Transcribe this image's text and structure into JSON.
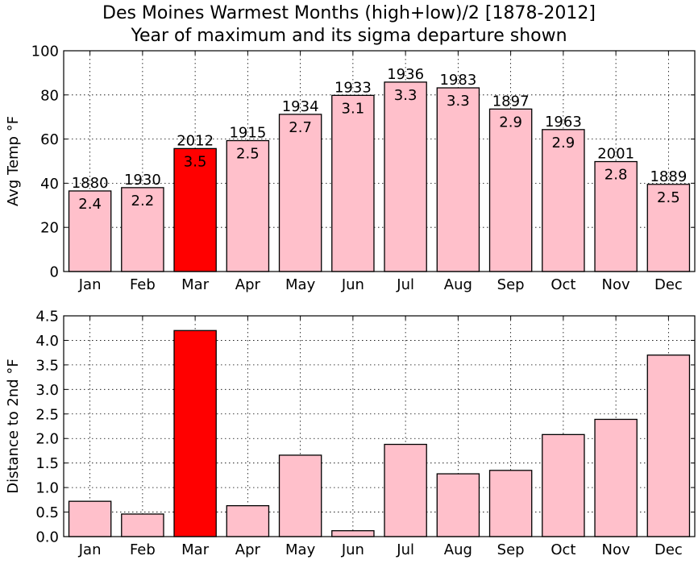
{
  "chart_data": [
    {
      "type": "bar",
      "title": "Des Moines Warmest Months (high+low)/2 [1878-2012]",
      "subtitle": "Year of maximum and its sigma departure shown",
      "ylabel": "Avg Temp °F",
      "xlabel": "",
      "ylim": [
        0,
        100
      ],
      "yticks": [
        "0",
        "20",
        "40",
        "60",
        "80",
        "100"
      ],
      "grid": true,
      "categories": [
        "Jan",
        "Feb",
        "Mar",
        "Apr",
        "May",
        "Jun",
        "Jul",
        "Aug",
        "Sep",
        "Oct",
        "Nov",
        "Dec"
      ],
      "values": [
        36.5,
        38,
        55.7,
        59.3,
        71.2,
        79.8,
        85.8,
        83.2,
        73.6,
        64.3,
        49.8,
        39.5
      ],
      "years": [
        "1880",
        "1930",
        "2012",
        "1915",
        "1934",
        "1933",
        "1936",
        "1983",
        "1897",
        "1963",
        "2001",
        "1889"
      ],
      "sigmas": [
        "2.4",
        "2.2",
        "3.5",
        "2.5",
        "2.7",
        "3.1",
        "3.3",
        "3.3",
        "2.9",
        "2.9",
        "2.8",
        "2.5"
      ],
      "highlight_index": 2,
      "colors": {
        "bar": "#ffc0cb",
        "highlight": "#ff0000"
      }
    },
    {
      "type": "bar",
      "ylabel": "Distance to 2nd °F",
      "xlabel": "",
      "ylim": [
        0,
        4.5
      ],
      "yticks": [
        "0.0",
        "0.5",
        "1.0",
        "1.5",
        "2.0",
        "2.5",
        "3.0",
        "3.5",
        "4.0",
        "4.5"
      ],
      "grid": true,
      "categories": [
        "Jan",
        "Feb",
        "Mar",
        "Apr",
        "May",
        "Jun",
        "Jul",
        "Aug",
        "Sep",
        "Oct",
        "Nov",
        "Dec"
      ],
      "values": [
        0.72,
        0.46,
        4.2,
        0.63,
        1.66,
        0.12,
        1.88,
        1.28,
        1.35,
        2.08,
        2.39,
        3.7
      ],
      "highlight_index": 2,
      "colors": {
        "bar": "#ffc0cb",
        "highlight": "#ff0000"
      }
    }
  ]
}
